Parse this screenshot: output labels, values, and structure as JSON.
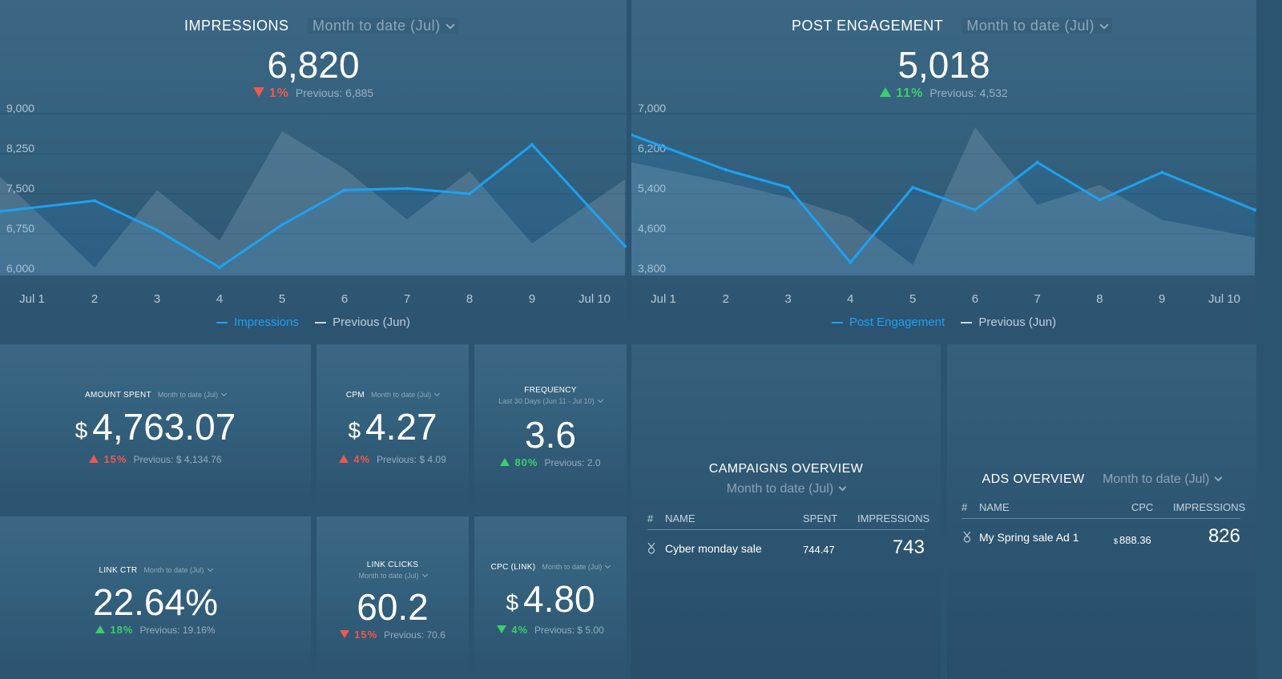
{
  "impressions": {
    "title": "IMPRESSIONS",
    "range": "Month to date (Jul)",
    "value": "6,820",
    "change": "1%",
    "previous": "Previous: 6,885",
    "legend_current": "Impressions",
    "legend_previous": "Previous (Jun)"
  },
  "engagement": {
    "title": "POST ENGAGEMENT",
    "range": "Month to date (Jul)",
    "value": "5,018",
    "change": "11%",
    "previous": "Previous: 4,532",
    "legend_current": "Post Engagement",
    "legend_previous": "Previous (Jun)"
  },
  "chart_data": [
    {
      "type": "line",
      "id": "impressions",
      "x": [
        "Jul 1",
        "2",
        "3",
        "4",
        "5",
        "6",
        "7",
        "8",
        "9",
        "Jul 10"
      ],
      "yticks": [
        "9,000",
        "8,250",
        "7,500",
        "6,750",
        "6,000"
      ],
      "ylim": [
        6000,
        9000
      ],
      "series": [
        {
          "name": "Impressions",
          "color": "#1da1f2",
          "values": [
            7050,
            7250,
            6700,
            6000,
            6800,
            7450,
            7480,
            7380,
            8300,
            6400
          ]
        },
        {
          "name": "Previous (Jun)",
          "color": "#b8c8d4",
          "values": [
            7700,
            6000,
            7450,
            6500,
            8550,
            7850,
            6900,
            7800,
            6450,
            7650
          ]
        }
      ]
    },
    {
      "type": "line",
      "id": "engagement",
      "x": [
        "Jul 1",
        "2",
        "3",
        "4",
        "5",
        "6",
        "7",
        "8",
        "9",
        "Jul 10"
      ],
      "yticks": [
        "7,000",
        "6,200",
        "5,400",
        "4,600",
        "3,800"
      ],
      "ylim": [
        3800,
        7000
      ],
      "series": [
        {
          "name": "Post Engagement",
          "color": "#1da1f2",
          "values": [
            6450,
            5750,
            5400,
            3900,
            5400,
            4950,
            5900,
            5150,
            5700,
            4950
          ]
        },
        {
          "name": "Previous (Jun)",
          "color": "#b8c8d4",
          "values": [
            5900,
            5500,
            5200,
            4800,
            3850,
            6600,
            5050,
            5450,
            4750,
            4400
          ]
        }
      ]
    }
  ],
  "kpis": {
    "amount_spent": {
      "label": "AMOUNT SPENT",
      "range": "Month to date (Jul)",
      "currency": "$",
      "value": "4,763.07",
      "change": "15%",
      "previous": "Previous: $ 4,134.76"
    },
    "cpm": {
      "label": "CPM",
      "range": "Month to date (Jul)",
      "currency": "$",
      "value": "4.27",
      "change": "4%",
      "previous": "Previous: $ 4.09"
    },
    "frequency": {
      "label": "FREQUENCY",
      "range": "Last 30 Days (Jun 11 - Jul 10)",
      "value": "3.6",
      "change": "80%",
      "previous": "Previous: 2.0"
    },
    "link_ctr": {
      "label": "LINK CTR",
      "range": "Month to date (Jul)",
      "value": "22.64%",
      "change": "18%",
      "previous": "Previous: 19.16%"
    },
    "link_clicks": {
      "label": "LINK CLICKS",
      "range": "Month to date (Jul)",
      "value": "60.2",
      "change": "15%",
      "previous": "Previous: 70.6"
    },
    "cpc_link": {
      "label": "CPC (LINK)",
      "range": "Month to date (Jul)",
      "currency": "$",
      "value": "4.80",
      "change": "4%",
      "previous": "Previous: $ 5.00"
    }
  },
  "campaigns": {
    "title": "CAMPAIGNS OVERVIEW",
    "range": "Month to date (Jul)",
    "columns": [
      "#",
      "NAME",
      "SPENT",
      "IMPRESSIONS"
    ],
    "rows": [
      {
        "name": "Cyber monday sale",
        "spent": "744.47",
        "impressions": "743"
      }
    ]
  },
  "ads": {
    "title": "ADS OVERVIEW",
    "range": "Month to date (Jul)",
    "columns": [
      "#",
      "NAME",
      "CPC",
      "IMPRESSIONS"
    ],
    "rows": [
      {
        "name": "My Spring sale Ad 1",
        "cpc_currency": "$",
        "cpc": "888.36",
        "impressions": "826"
      }
    ]
  },
  "colors": {
    "accent": "#1da1f2",
    "up": "#3ccf6b",
    "down": "#f1584c",
    "previous_line": "#b8c8d4"
  }
}
